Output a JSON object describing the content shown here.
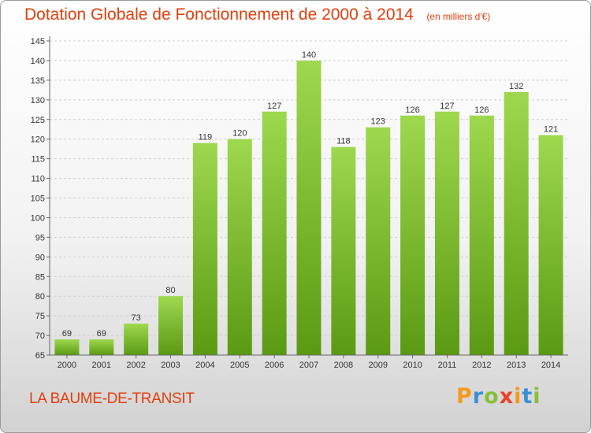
{
  "chart_data": {
    "type": "bar",
    "title": "Dotation Globale de Fonctionnement de 2000 à 2014",
    "unit_note": "(en milliers d'€)",
    "categories": [
      "2000",
      "2001",
      "2002",
      "2003",
      "2004",
      "2005",
      "2006",
      "2007",
      "2008",
      "2009",
      "2010",
      "2011",
      "2012",
      "2013",
      "2014"
    ],
    "values": [
      69,
      69,
      73,
      80,
      119,
      120,
      127,
      140,
      118,
      123,
      126,
      127,
      126,
      132,
      121
    ],
    "ylim": [
      65,
      145
    ],
    "yticks": [
      65,
      70,
      75,
      80,
      85,
      90,
      95,
      100,
      105,
      110,
      115,
      120,
      125,
      130,
      135,
      140,
      145
    ],
    "grid": true,
    "colors": {
      "bar_top": "#9ed84e",
      "bar_bottom": "#5a9a12",
      "title": "#e0400e"
    }
  },
  "commune": "LA BAUME-DE-TRANSIT",
  "logo": {
    "letters": [
      "P",
      "r",
      "o",
      "x",
      "i",
      "t",
      "i"
    ],
    "colors": [
      "#f39a1c",
      "#3b8fd6",
      "#86c03a",
      "#e8432a",
      "#f39a1c",
      "#3b8fd6",
      "#86c03a"
    ]
  }
}
